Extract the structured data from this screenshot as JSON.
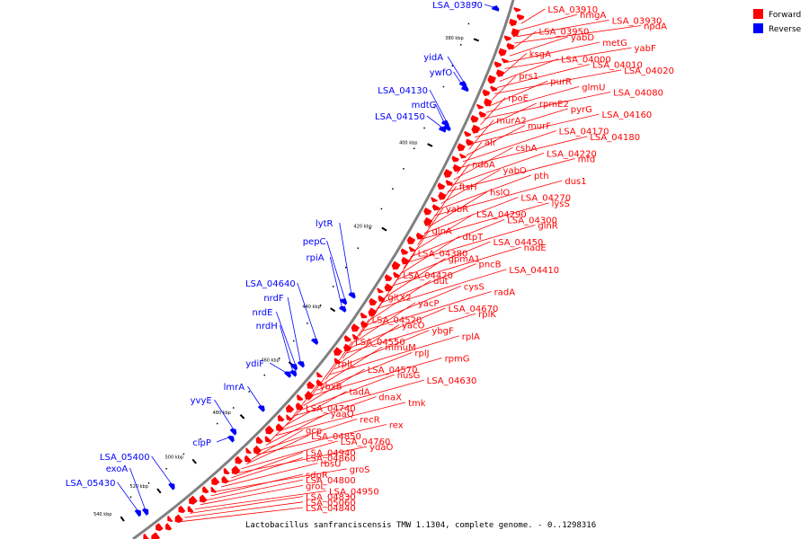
{
  "caption": "Lactobacillus sanfranciscensis TMW 1.1304, complete genome. - 0..1298316",
  "legend": [
    {
      "label": "Forward",
      "color": "#ff0000"
    },
    {
      "label": "Reverse",
      "color": "#0000ff"
    }
  ],
  "colors": {
    "forward": "#ff0000",
    "reverse": "#0000ff",
    "backbone": "#808080"
  },
  "ticks": [
    {
      "label": "380 kbp",
      "kbp": 380
    },
    {
      "label": "400 kbp",
      "kbp": 400
    },
    {
      "label": "420 kbp",
      "kbp": 420
    },
    {
      "label": "440 kbp",
      "kbp": 440
    },
    {
      "label": "460 kbp",
      "kbp": 460
    },
    {
      "label": "480 kbp",
      "kbp": 480
    },
    {
      "label": "500 kbp",
      "kbp": 500
    },
    {
      "label": "520 kbp",
      "kbp": 520
    },
    {
      "label": "540 kbp",
      "kbp": 540
    }
  ],
  "forward_labels": [
    "LSA_03910",
    "hmgA",
    "LSA_03930",
    "npdA",
    "LSA_03950",
    "yabD",
    "metG",
    "yabF",
    "ksgA",
    "LSA_04000",
    "LSA_04010",
    "LSA_04020",
    "prs1",
    "purR",
    "glmU",
    "LSA_04080",
    "rpoE",
    "rpmE2",
    "pyrG",
    "LSA_04160",
    "murA2",
    "murF",
    "LSA_04170",
    "LSA_04180",
    "alr",
    "cshA",
    "LSA_04220",
    "mfd",
    "ndoA",
    "yabO",
    "pth",
    "dus1",
    "ftsH",
    "hslO",
    "LSA_04270",
    "lysS",
    "yabR",
    "LSA_04290",
    "LSA_04300",
    "glnR",
    "glnA",
    "dtpT",
    "LSA_04450",
    "nadE",
    "LSA_04380",
    "gpmA1",
    "pncB",
    "LSA_04410",
    "LSA_04420",
    "dut",
    "cysS",
    "radA",
    "gltX2",
    "yacP",
    "LSA_04670",
    "rplK",
    "LSA_04520",
    "yacO",
    "ybgF",
    "rplA",
    "LSA_04550",
    "mmuM",
    "rplJ",
    "rpmG",
    "rplL",
    "LSA_04570",
    "nusG",
    "LSA_04630",
    "ybxB",
    "tadA",
    "dnaX",
    "tmk",
    "LSA_04740",
    "yaaQ",
    "recR",
    "rex",
    "gcp",
    "LSA_04850",
    "LSA_04760",
    "ydaO",
    "LSA_04940",
    "LSA_04860",
    "rbsU",
    "groS",
    "sdpR",
    "LSA_04800",
    "groL",
    "LSA_04950",
    "LSA_04830",
    "LSA_05060",
    "LSA_04840"
  ],
  "reverse_labels": [
    "LSA_03890",
    "yidA",
    "ywfO",
    "LSA_04130",
    "mdtG",
    "LSA_04150",
    "lytR",
    "pepC",
    "rpiA",
    "LSA_04640",
    "nrdF",
    "nrdE",
    "nrdH",
    "ydiF",
    "lmrA",
    "yvyE",
    "clpP",
    "LSA_05400",
    "exoA",
    "LSA_05430"
  ]
}
